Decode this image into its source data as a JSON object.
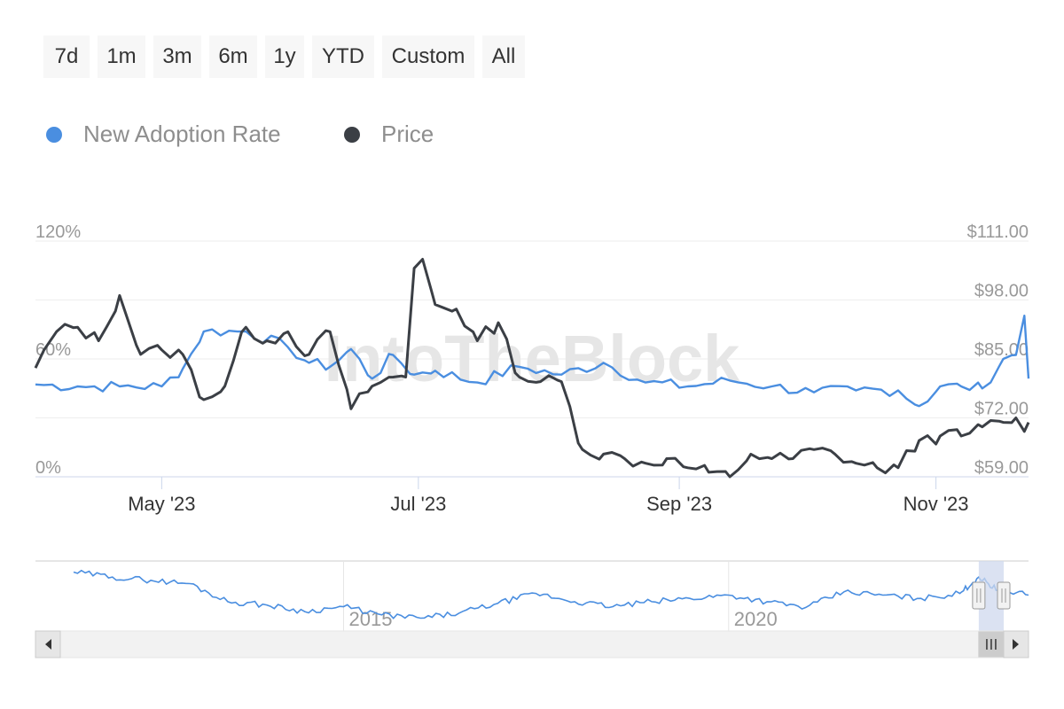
{
  "range_selector": {
    "buttons": [
      {
        "id": "7d",
        "label": "7d"
      },
      {
        "id": "1m",
        "label": "1m"
      },
      {
        "id": "3m",
        "label": "3m"
      },
      {
        "id": "6m",
        "label": "6m"
      },
      {
        "id": "1y",
        "label": "1y"
      },
      {
        "id": "ytd",
        "label": "YTD"
      },
      {
        "id": "custom",
        "label": "Custom"
      },
      {
        "id": "all",
        "label": "All"
      }
    ]
  },
  "watermark": "IntoTheBlock",
  "colors": {
    "adoption": "#4a8ee0",
    "price": "#3b3f45",
    "navigator_mask": "#cfd8ee",
    "grid": "#eeeeee",
    "axis_line": "#ccd6eb"
  },
  "chart_data": {
    "type": "line",
    "legend_position": "top-left",
    "grid": true,
    "x_ticks": [
      "May '23",
      "Jul '23",
      "Sep '23",
      "Nov '23"
    ],
    "x_range": [
      "2023-04-01",
      "2023-11-23"
    ],
    "y_left": {
      "ticks": [
        "0%",
        "60%",
        "120%"
      ],
      "range": [
        0,
        120
      ],
      "unit": "%"
    },
    "y_right": {
      "ticks": [
        "$59.00",
        "$72.00",
        "$85.00",
        "$98.00",
        "$111.00"
      ],
      "range": [
        59,
        111
      ],
      "unit": "$"
    },
    "series": [
      {
        "name": "New Adoption Rate",
        "axis": "left",
        "x": [
          "2023-04-01",
          "2023-04-11",
          "2023-04-21",
          "2023-05-01",
          "2023-05-06",
          "2023-05-11",
          "2023-05-21",
          "2023-05-31",
          "2023-06-05",
          "2023-06-10",
          "2023-06-15",
          "2023-06-20",
          "2023-06-25",
          "2023-06-30",
          "2023-07-05",
          "2023-07-15",
          "2023-07-25",
          "2023-08-04",
          "2023-08-14",
          "2023-08-24",
          "2023-09-03",
          "2023-09-13",
          "2023-09-23",
          "2023-10-03",
          "2023-10-13",
          "2023-10-23",
          "2023-10-28",
          "2023-11-02",
          "2023-11-07",
          "2023-11-12",
          "2023-11-17",
          "2023-11-20",
          "2023-11-22",
          "2023-11-23"
        ],
        "values": [
          47,
          46,
          46,
          46,
          55,
          74,
          74,
          66,
          58,
          56,
          65,
          50,
          62,
          52,
          54,
          48,
          56,
          52,
          58,
          48,
          46,
          49,
          46,
          43,
          44,
          44,
          36,
          46,
          46,
          45,
          60,
          62,
          82,
          50
        ]
      },
      {
        "name": "Price",
        "axis": "right",
        "x": [
          "2023-04-01",
          "2023-04-06",
          "2023-04-11",
          "2023-04-16",
          "2023-04-21",
          "2023-04-26",
          "2023-05-01",
          "2023-05-06",
          "2023-05-11",
          "2023-05-16",
          "2023-05-21",
          "2023-05-26",
          "2023-05-31",
          "2023-06-05",
          "2023-06-10",
          "2023-06-15",
          "2023-06-20",
          "2023-06-25",
          "2023-06-28",
          "2023-06-30",
          "2023-07-02",
          "2023-07-05",
          "2023-07-10",
          "2023-07-15",
          "2023-07-20",
          "2023-07-25",
          "2023-07-30",
          "2023-08-04",
          "2023-08-09",
          "2023-08-14",
          "2023-08-19",
          "2023-08-24",
          "2023-08-29",
          "2023-09-03",
          "2023-09-08",
          "2023-09-13",
          "2023-09-18",
          "2023-09-23",
          "2023-09-28",
          "2023-10-03",
          "2023-10-08",
          "2023-10-13",
          "2023-10-18",
          "2023-10-23",
          "2023-10-28",
          "2023-11-02",
          "2023-11-07",
          "2023-11-12",
          "2023-11-17",
          "2023-11-20",
          "2023-11-22",
          "2023-11-23"
        ],
        "values": [
          83,
          91,
          92,
          89,
          99,
          86,
          87,
          86,
          76,
          79,
          92,
          89,
          91,
          86,
          91,
          74,
          79,
          81,
          81,
          105,
          107,
          97,
          96,
          89,
          93,
          81,
          80,
          80,
          65,
          64,
          63,
          62,
          63,
          61,
          60,
          59,
          64,
          63,
          63,
          65,
          64,
          62,
          61,
          61,
          67,
          68,
          68,
          70,
          71,
          72,
          69,
          71
        ]
      }
    ]
  },
  "navigator": {
    "x_labels": [
      "2015",
      "2020"
    ],
    "x_range": [
      "2011-01-01",
      "2023-11-23"
    ],
    "selected_range": [
      "2023-04-01",
      "2023-11-23"
    ],
    "series": {
      "name": "New Adoption Rate",
      "x": [
        "2011-07-01",
        "2012-01-01",
        "2012-07-01",
        "2013-01-01",
        "2013-07-01",
        "2014-01-01",
        "2014-07-01",
        "2015-01-01",
        "2015-07-01",
        "2016-01-01",
        "2016-07-01",
        "2017-01-01",
        "2017-07-01",
        "2018-01-01",
        "2018-07-01",
        "2019-01-01",
        "2019-07-01",
        "2020-01-01",
        "2020-07-01",
        "2021-01-01",
        "2021-07-01",
        "2022-01-01",
        "2022-07-01",
        "2023-01-01",
        "2023-04-01",
        "2023-07-01",
        "2023-11-23"
      ],
      "values": [
        98,
        92,
        88,
        84,
        62,
        58,
        50,
        56,
        46,
        42,
        48,
        60,
        72,
        62,
        56,
        62,
        66,
        70,
        62,
        55,
        74,
        70,
        66,
        72,
        92,
        76,
        70
      ]
    }
  }
}
